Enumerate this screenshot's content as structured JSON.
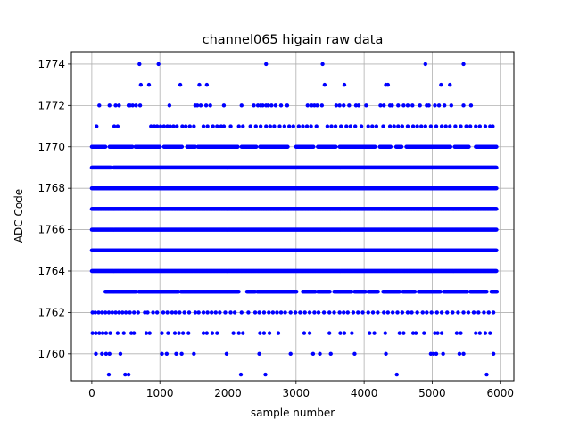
{
  "chart_data": {
    "type": "scatter",
    "title": "channel065 higain raw data",
    "xlabel": "sample number",
    "ylabel": "ADC Code",
    "xlim": [
      -300,
      6200
    ],
    "ylim": [
      1758.7,
      1774.6
    ],
    "xticks": [
      0,
      1000,
      2000,
      3000,
      4000,
      5000,
      6000
    ],
    "yticks": [
      1760,
      1762,
      1764,
      1766,
      1768,
      1770,
      1772,
      1774
    ],
    "grid": true,
    "marker_color": "#0000ff",
    "n_samples": 5950,
    "levels": [
      {
        "y": 1764,
        "x_ranges": [
          [
            0,
            5950
          ]
        ]
      },
      {
        "y": 1765,
        "x_ranges": [
          [
            0,
            5950
          ]
        ]
      },
      {
        "y": 1766,
        "x_ranges": [
          [
            0,
            5950
          ]
        ]
      },
      {
        "y": 1767,
        "x_ranges": [
          [
            0,
            5950
          ]
        ]
      },
      {
        "y": 1768,
        "x_ranges": [
          [
            0,
            5950
          ]
        ]
      },
      {
        "y": 1769,
        "x_ranges": [
          [
            0,
            280
          ],
          [
            320,
            5950
          ]
        ]
      },
      {
        "y": 1770,
        "x_ranges": [
          [
            0,
            200
          ],
          [
            260,
            600
          ],
          [
            640,
            1000
          ],
          [
            1060,
            1330
          ],
          [
            1400,
            1520
          ],
          [
            1560,
            2150
          ],
          [
            2200,
            2420
          ],
          [
            2470,
            2880
          ],
          [
            3000,
            3260
          ],
          [
            3320,
            3590
          ],
          [
            3640,
            4160
          ],
          [
            4230,
            4390
          ],
          [
            4470,
            4550
          ],
          [
            4620,
            5270
          ],
          [
            5330,
            5540
          ],
          [
            5640,
            5950
          ]
        ]
      },
      {
        "y": 1763,
        "x_ranges": [
          [
            200,
            650
          ],
          [
            690,
            1280
          ],
          [
            1310,
            2160
          ],
          [
            2280,
            2400
          ],
          [
            2430,
            3010
          ],
          [
            3100,
            3290
          ],
          [
            3320,
            3500
          ],
          [
            3560,
            3820
          ],
          [
            3860,
            4020
          ],
          [
            4060,
            4210
          ],
          [
            4280,
            4520
          ],
          [
            4570,
            4750
          ],
          [
            4800,
            5120
          ],
          [
            5170,
            5520
          ],
          [
            5560,
            5800
          ],
          [
            5870,
            5950
          ]
        ]
      }
    ],
    "points": [
      [
        700,
        1774
      ],
      [
        980,
        1774
      ],
      [
        2560,
        1774
      ],
      [
        3390,
        1774
      ],
      [
        4900,
        1774
      ],
      [
        5460,
        1774
      ],
      [
        720,
        1773
      ],
      [
        840,
        1773
      ],
      [
        1300,
        1773
      ],
      [
        1580,
        1773
      ],
      [
        1690,
        1773
      ],
      [
        3420,
        1773
      ],
      [
        3710,
        1773
      ],
      [
        4320,
        1773
      ],
      [
        4350,
        1773
      ],
      [
        5130,
        1773
      ],
      [
        5260,
        1773
      ],
      [
        110,
        1772
      ],
      [
        260,
        1772
      ],
      [
        350,
        1772
      ],
      [
        400,
        1772
      ],
      [
        540,
        1772
      ],
      [
        560,
        1772
      ],
      [
        600,
        1772
      ],
      [
        650,
        1772
      ],
      [
        710,
        1772
      ],
      [
        1140,
        1772
      ],
      [
        1520,
        1772
      ],
      [
        1550,
        1772
      ],
      [
        1600,
        1772
      ],
      [
        1680,
        1772
      ],
      [
        1740,
        1772
      ],
      [
        1940,
        1772
      ],
      [
        2200,
        1772
      ],
      [
        2380,
        1772
      ],
      [
        2440,
        1772
      ],
      [
        2480,
        1772
      ],
      [
        2510,
        1772
      ],
      [
        2560,
        1772
      ],
      [
        2590,
        1772
      ],
      [
        2640,
        1772
      ],
      [
        2700,
        1772
      ],
      [
        2780,
        1772
      ],
      [
        2870,
        1772
      ],
      [
        3170,
        1772
      ],
      [
        3230,
        1772
      ],
      [
        3270,
        1772
      ],
      [
        3310,
        1772
      ],
      [
        3380,
        1772
      ],
      [
        3590,
        1772
      ],
      [
        3640,
        1772
      ],
      [
        3700,
        1772
      ],
      [
        3780,
        1772
      ],
      [
        3880,
        1772
      ],
      [
        3920,
        1772
      ],
      [
        4030,
        1772
      ],
      [
        4240,
        1772
      ],
      [
        4290,
        1772
      ],
      [
        4380,
        1772
      ],
      [
        4410,
        1772
      ],
      [
        4500,
        1772
      ],
      [
        4580,
        1772
      ],
      [
        4640,
        1772
      ],
      [
        4710,
        1772
      ],
      [
        4820,
        1772
      ],
      [
        4920,
        1772
      ],
      [
        4950,
        1772
      ],
      [
        5040,
        1772
      ],
      [
        5100,
        1772
      ],
      [
        5180,
        1772
      ],
      [
        5280,
        1772
      ],
      [
        5460,
        1772
      ],
      [
        5570,
        1772
      ],
      [
        70,
        1771
      ],
      [
        330,
        1771
      ],
      [
        380,
        1771
      ],
      [
        870,
        1771
      ],
      [
        920,
        1771
      ],
      [
        960,
        1771
      ],
      [
        1010,
        1771
      ],
      [
        1060,
        1771
      ],
      [
        1110,
        1771
      ],
      [
        1150,
        1771
      ],
      [
        1200,
        1771
      ],
      [
        1250,
        1771
      ],
      [
        1330,
        1771
      ],
      [
        1380,
        1771
      ],
      [
        1440,
        1771
      ],
      [
        1500,
        1771
      ],
      [
        1640,
        1771
      ],
      [
        1700,
        1771
      ],
      [
        1780,
        1771
      ],
      [
        1840,
        1771
      ],
      [
        1900,
        1771
      ],
      [
        1940,
        1771
      ],
      [
        2040,
        1771
      ],
      [
        2160,
        1771
      ],
      [
        2220,
        1771
      ],
      [
        2330,
        1771
      ],
      [
        2410,
        1771
      ],
      [
        2480,
        1771
      ],
      [
        2560,
        1771
      ],
      [
        2620,
        1771
      ],
      [
        2680,
        1771
      ],
      [
        2760,
        1771
      ],
      [
        2830,
        1771
      ],
      [
        2900,
        1771
      ],
      [
        2960,
        1771
      ],
      [
        3040,
        1771
      ],
      [
        3100,
        1771
      ],
      [
        3160,
        1771
      ],
      [
        3220,
        1771
      ],
      [
        3300,
        1771
      ],
      [
        3460,
        1771
      ],
      [
        3520,
        1771
      ],
      [
        3580,
        1771
      ],
      [
        3660,
        1771
      ],
      [
        3740,
        1771
      ],
      [
        3800,
        1771
      ],
      [
        3870,
        1771
      ],
      [
        3960,
        1771
      ],
      [
        4060,
        1771
      ],
      [
        4120,
        1771
      ],
      [
        4180,
        1771
      ],
      [
        4280,
        1771
      ],
      [
        4380,
        1771
      ],
      [
        4440,
        1771
      ],
      [
        4500,
        1771
      ],
      [
        4560,
        1771
      ],
      [
        4640,
        1771
      ],
      [
        4720,
        1771
      ],
      [
        4780,
        1771
      ],
      [
        4840,
        1771
      ],
      [
        4900,
        1771
      ],
      [
        4980,
        1771
      ],
      [
        5060,
        1771
      ],
      [
        5140,
        1771
      ],
      [
        5200,
        1771
      ],
      [
        5260,
        1771
      ],
      [
        5340,
        1771
      ],
      [
        5420,
        1771
      ],
      [
        5500,
        1771
      ],
      [
        5560,
        1771
      ],
      [
        5640,
        1771
      ],
      [
        5700,
        1771
      ],
      [
        5780,
        1771
      ],
      [
        5850,
        1771
      ],
      [
        5890,
        1771
      ],
      [
        10,
        1762
      ],
      [
        50,
        1762
      ],
      [
        100,
        1762
      ],
      [
        150,
        1762
      ],
      [
        200,
        1762
      ],
      [
        250,
        1762
      ],
      [
        300,
        1762
      ],
      [
        350,
        1762
      ],
      [
        400,
        1762
      ],
      [
        450,
        1762
      ],
      [
        500,
        1762
      ],
      [
        560,
        1762
      ],
      [
        620,
        1762
      ],
      [
        680,
        1762
      ],
      [
        780,
        1762
      ],
      [
        820,
        1762
      ],
      [
        900,
        1762
      ],
      [
        960,
        1762
      ],
      [
        1050,
        1762
      ],
      [
        1110,
        1762
      ],
      [
        1180,
        1762
      ],
      [
        1230,
        1762
      ],
      [
        1290,
        1762
      ],
      [
        1360,
        1762
      ],
      [
        1430,
        1762
      ],
      [
        1520,
        1762
      ],
      [
        1570,
        1762
      ],
      [
        1640,
        1762
      ],
      [
        1700,
        1762
      ],
      [
        1760,
        1762
      ],
      [
        1820,
        1762
      ],
      [
        1880,
        1762
      ],
      [
        1960,
        1762
      ],
      [
        2040,
        1762
      ],
      [
        2100,
        1762
      ],
      [
        2200,
        1762
      ],
      [
        2300,
        1762
      ],
      [
        2400,
        1762
      ],
      [
        2460,
        1762
      ],
      [
        2530,
        1762
      ],
      [
        2600,
        1762
      ],
      [
        2660,
        1762
      ],
      [
        2720,
        1762
      ],
      [
        2780,
        1762
      ],
      [
        2840,
        1762
      ],
      [
        2920,
        1762
      ],
      [
        2990,
        1762
      ],
      [
        3060,
        1762
      ],
      [
        3130,
        1762
      ],
      [
        3200,
        1762
      ],
      [
        3270,
        1762
      ],
      [
        3330,
        1762
      ],
      [
        3410,
        1762
      ],
      [
        3490,
        1762
      ],
      [
        3560,
        1762
      ],
      [
        3640,
        1762
      ],
      [
        3700,
        1762
      ],
      [
        3760,
        1762
      ],
      [
        3840,
        1762
      ],
      [
        3910,
        1762
      ],
      [
        3980,
        1762
      ],
      [
        4060,
        1762
      ],
      [
        4130,
        1762
      ],
      [
        4200,
        1762
      ],
      [
        4290,
        1762
      ],
      [
        4350,
        1762
      ],
      [
        4420,
        1762
      ],
      [
        4490,
        1762
      ],
      [
        4560,
        1762
      ],
      [
        4640,
        1762
      ],
      [
        4700,
        1762
      ],
      [
        4780,
        1762
      ],
      [
        4860,
        1762
      ],
      [
        4920,
        1762
      ],
      [
        4990,
        1762
      ],
      [
        5070,
        1762
      ],
      [
        5140,
        1762
      ],
      [
        5220,
        1762
      ],
      [
        5300,
        1762
      ],
      [
        5380,
        1762
      ],
      [
        5460,
        1762
      ],
      [
        5530,
        1762
      ],
      [
        5610,
        1762
      ],
      [
        5680,
        1762
      ],
      [
        5760,
        1762
      ],
      [
        5830,
        1762
      ],
      [
        5900,
        1762
      ],
      [
        10,
        1761
      ],
      [
        60,
        1761
      ],
      [
        110,
        1761
      ],
      [
        160,
        1761
      ],
      [
        210,
        1761
      ],
      [
        270,
        1761
      ],
      [
        380,
        1761
      ],
      [
        470,
        1761
      ],
      [
        580,
        1761
      ],
      [
        620,
        1761
      ],
      [
        800,
        1761
      ],
      [
        850,
        1761
      ],
      [
        1030,
        1761
      ],
      [
        1120,
        1761
      ],
      [
        1220,
        1761
      ],
      [
        1280,
        1761
      ],
      [
        1340,
        1761
      ],
      [
        1420,
        1761
      ],
      [
        1640,
        1761
      ],
      [
        1690,
        1761
      ],
      [
        1770,
        1761
      ],
      [
        1840,
        1761
      ],
      [
        2080,
        1761
      ],
      [
        2160,
        1761
      ],
      [
        2220,
        1761
      ],
      [
        2470,
        1761
      ],
      [
        2530,
        1761
      ],
      [
        2610,
        1761
      ],
      [
        2740,
        1761
      ],
      [
        3120,
        1761
      ],
      [
        3200,
        1761
      ],
      [
        3490,
        1761
      ],
      [
        3650,
        1761
      ],
      [
        3710,
        1761
      ],
      [
        3820,
        1761
      ],
      [
        4080,
        1761
      ],
      [
        4150,
        1761
      ],
      [
        4310,
        1761
      ],
      [
        4520,
        1761
      ],
      [
        4580,
        1761
      ],
      [
        4720,
        1761
      ],
      [
        4760,
        1761
      ],
      [
        4880,
        1761
      ],
      [
        5040,
        1761
      ],
      [
        5080,
        1761
      ],
      [
        5140,
        1761
      ],
      [
        5360,
        1761
      ],
      [
        5420,
        1761
      ],
      [
        5640,
        1761
      ],
      [
        5700,
        1761
      ],
      [
        5780,
        1761
      ],
      [
        5850,
        1761
      ],
      [
        60,
        1760
      ],
      [
        150,
        1760
      ],
      [
        210,
        1760
      ],
      [
        260,
        1760
      ],
      [
        420,
        1760
      ],
      [
        1030,
        1760
      ],
      [
        1100,
        1760
      ],
      [
        1240,
        1760
      ],
      [
        1320,
        1760
      ],
      [
        1500,
        1760
      ],
      [
        1980,
        1760
      ],
      [
        2460,
        1760
      ],
      [
        2920,
        1760
      ],
      [
        3250,
        1760
      ],
      [
        3350,
        1760
      ],
      [
        3510,
        1760
      ],
      [
        3860,
        1760
      ],
      [
        4320,
        1760
      ],
      [
        4980,
        1760
      ],
      [
        5020,
        1760
      ],
      [
        5060,
        1760
      ],
      [
        5160,
        1760
      ],
      [
        5400,
        1760
      ],
      [
        5460,
        1760
      ],
      [
        5900,
        1760
      ],
      [
        250,
        1759
      ],
      [
        490,
        1759
      ],
      [
        540,
        1759
      ],
      [
        2190,
        1759
      ],
      [
        2550,
        1759
      ],
      [
        4480,
        1759
      ],
      [
        5800,
        1759
      ]
    ]
  }
}
